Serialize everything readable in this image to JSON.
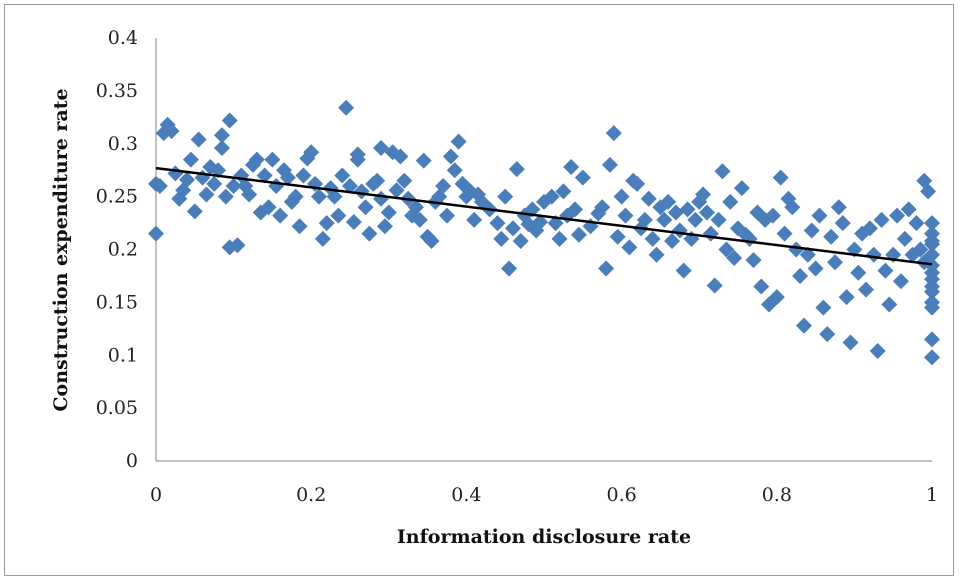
{
  "chart_data": {
    "type": "scatter",
    "title": "",
    "xlabel": "Information disclosure rate",
    "ylabel": "Construction expenditure rate",
    "xlim": [
      0,
      1
    ],
    "ylim": [
      0,
      0.4
    ],
    "x_ticks": [
      "0",
      "0.2",
      "0.4",
      "0.6",
      "0.8",
      "1"
    ],
    "y_ticks": [
      "0",
      "0.05",
      "0.1",
      "0.15",
      "0.2",
      "0.25",
      "0.3",
      "0.35",
      "0.4"
    ],
    "grid": false,
    "legend": "none",
    "marker": "diamond",
    "marker_color": "#4a7ebb",
    "trendline": {
      "color": "#000000",
      "start": [
        0,
        0.277
      ],
      "end": [
        1,
        0.186
      ]
    },
    "series": [
      {
        "points": [
          [
            0.0,
            0.262
          ],
          [
            0.0,
            0.215
          ],
          [
            0.005,
            0.26
          ],
          [
            0.01,
            0.31
          ],
          [
            0.015,
            0.318
          ],
          [
            0.02,
            0.312
          ],
          [
            0.025,
            0.272
          ],
          [
            0.03,
            0.248
          ],
          [
            0.035,
            0.256
          ],
          [
            0.04,
            0.266
          ],
          [
            0.045,
            0.285
          ],
          [
            0.05,
            0.236
          ],
          [
            0.055,
            0.304
          ],
          [
            0.06,
            0.268
          ],
          [
            0.065,
            0.252
          ],
          [
            0.07,
            0.278
          ],
          [
            0.075,
            0.262
          ],
          [
            0.08,
            0.275
          ],
          [
            0.085,
            0.296
          ],
          [
            0.085,
            0.308
          ],
          [
            0.09,
            0.25
          ],
          [
            0.095,
            0.322
          ],
          [
            0.095,
            0.202
          ],
          [
            0.1,
            0.26
          ],
          [
            0.105,
            0.204
          ],
          [
            0.11,
            0.27
          ],
          [
            0.115,
            0.26
          ],
          [
            0.12,
            0.252
          ],
          [
            0.125,
            0.28
          ],
          [
            0.13,
            0.285
          ],
          [
            0.135,
            0.235
          ],
          [
            0.14,
            0.27
          ],
          [
            0.145,
            0.24
          ],
          [
            0.15,
            0.285
          ],
          [
            0.155,
            0.26
          ],
          [
            0.16,
            0.232
          ],
          [
            0.165,
            0.275
          ],
          [
            0.17,
            0.268
          ],
          [
            0.175,
            0.245
          ],
          [
            0.18,
            0.25
          ],
          [
            0.185,
            0.222
          ],
          [
            0.19,
            0.27
          ],
          [
            0.195,
            0.286
          ],
          [
            0.2,
            0.292
          ],
          [
            0.205,
            0.262
          ],
          [
            0.21,
            0.25
          ],
          [
            0.215,
            0.21
          ],
          [
            0.22,
            0.225
          ],
          [
            0.225,
            0.258
          ],
          [
            0.23,
            0.25
          ],
          [
            0.235,
            0.232
          ],
          [
            0.24,
            0.27
          ],
          [
            0.245,
            0.334
          ],
          [
            0.25,
            0.26
          ],
          [
            0.255,
            0.226
          ],
          [
            0.26,
            0.29
          ],
          [
            0.26,
            0.285
          ],
          [
            0.265,
            0.255
          ],
          [
            0.27,
            0.24
          ],
          [
            0.275,
            0.215
          ],
          [
            0.28,
            0.262
          ],
          [
            0.285,
            0.265
          ],
          [
            0.29,
            0.248
          ],
          [
            0.29,
            0.296
          ],
          [
            0.295,
            0.222
          ],
          [
            0.3,
            0.235
          ],
          [
            0.305,
            0.292
          ],
          [
            0.31,
            0.256
          ],
          [
            0.315,
            0.288
          ],
          [
            0.32,
            0.265
          ],
          [
            0.325,
            0.248
          ],
          [
            0.33,
            0.232
          ],
          [
            0.335,
            0.24
          ],
          [
            0.34,
            0.228
          ],
          [
            0.345,
            0.284
          ],
          [
            0.35,
            0.212
          ],
          [
            0.355,
            0.208
          ],
          [
            0.36,
            0.245
          ],
          [
            0.365,
            0.25
          ],
          [
            0.37,
            0.26
          ],
          [
            0.375,
            0.232
          ],
          [
            0.38,
            0.288
          ],
          [
            0.385,
            0.275
          ],
          [
            0.39,
            0.302
          ],
          [
            0.395,
            0.262
          ],
          [
            0.4,
            0.25
          ],
          [
            0.405,
            0.255
          ],
          [
            0.41,
            0.228
          ],
          [
            0.415,
            0.252
          ],
          [
            0.42,
            0.245
          ],
          [
            0.43,
            0.238
          ],
          [
            0.44,
            0.225
          ],
          [
            0.445,
            0.21
          ],
          [
            0.45,
            0.25
          ],
          [
            0.455,
            0.182
          ],
          [
            0.46,
            0.22
          ],
          [
            0.465,
            0.276
          ],
          [
            0.47,
            0.208
          ],
          [
            0.475,
            0.232
          ],
          [
            0.48,
            0.224
          ],
          [
            0.485,
            0.238
          ],
          [
            0.49,
            0.218
          ],
          [
            0.495,
            0.226
          ],
          [
            0.5,
            0.245
          ],
          [
            0.51,
            0.25
          ],
          [
            0.515,
            0.225
          ],
          [
            0.52,
            0.21
          ],
          [
            0.525,
            0.255
          ],
          [
            0.53,
            0.232
          ],
          [
            0.535,
            0.278
          ],
          [
            0.54,
            0.238
          ],
          [
            0.545,
            0.214
          ],
          [
            0.55,
            0.268
          ],
          [
            0.56,
            0.222
          ],
          [
            0.57,
            0.234
          ],
          [
            0.575,
            0.24
          ],
          [
            0.58,
            0.182
          ],
          [
            0.585,
            0.28
          ],
          [
            0.59,
            0.31
          ],
          [
            0.595,
            0.212
          ],
          [
            0.6,
            0.25
          ],
          [
            0.605,
            0.232
          ],
          [
            0.61,
            0.202
          ],
          [
            0.615,
            0.265
          ],
          [
            0.62,
            0.262
          ],
          [
            0.625,
            0.22
          ],
          [
            0.63,
            0.228
          ],
          [
            0.635,
            0.248
          ],
          [
            0.64,
            0.21
          ],
          [
            0.645,
            0.195
          ],
          [
            0.65,
            0.24
          ],
          [
            0.655,
            0.228
          ],
          [
            0.66,
            0.245
          ],
          [
            0.665,
            0.208
          ],
          [
            0.67,
            0.235
          ],
          [
            0.675,
            0.218
          ],
          [
            0.68,
            0.18
          ],
          [
            0.685,
            0.238
          ],
          [
            0.69,
            0.21
          ],
          [
            0.695,
            0.228
          ],
          [
            0.7,
            0.245
          ],
          [
            0.705,
            0.252
          ],
          [
            0.71,
            0.235
          ],
          [
            0.715,
            0.215
          ],
          [
            0.72,
            0.166
          ],
          [
            0.725,
            0.228
          ],
          [
            0.73,
            0.274
          ],
          [
            0.735,
            0.2
          ],
          [
            0.74,
            0.245
          ],
          [
            0.745,
            0.192
          ],
          [
            0.75,
            0.22
          ],
          [
            0.755,
            0.258
          ],
          [
            0.76,
            0.214
          ],
          [
            0.765,
            0.21
          ],
          [
            0.77,
            0.19
          ],
          [
            0.775,
            0.235
          ],
          [
            0.78,
            0.165
          ],
          [
            0.785,
            0.228
          ],
          [
            0.79,
            0.148
          ],
          [
            0.795,
            0.232
          ],
          [
            0.8,
            0.155
          ],
          [
            0.805,
            0.268
          ],
          [
            0.81,
            0.215
          ],
          [
            0.815,
            0.248
          ],
          [
            0.82,
            0.24
          ],
          [
            0.825,
            0.2
          ],
          [
            0.83,
            0.175
          ],
          [
            0.835,
            0.128
          ],
          [
            0.84,
            0.195
          ],
          [
            0.845,
            0.218
          ],
          [
            0.85,
            0.182
          ],
          [
            0.855,
            0.232
          ],
          [
            0.86,
            0.145
          ],
          [
            0.865,
            0.12
          ],
          [
            0.87,
            0.212
          ],
          [
            0.875,
            0.188
          ],
          [
            0.88,
            0.24
          ],
          [
            0.885,
            0.225
          ],
          [
            0.89,
            0.155
          ],
          [
            0.895,
            0.112
          ],
          [
            0.9,
            0.2
          ],
          [
            0.905,
            0.178
          ],
          [
            0.91,
            0.215
          ],
          [
            0.915,
            0.162
          ],
          [
            0.92,
            0.22
          ],
          [
            0.925,
            0.195
          ],
          [
            0.93,
            0.104
          ],
          [
            0.935,
            0.228
          ],
          [
            0.94,
            0.18
          ],
          [
            0.945,
            0.148
          ],
          [
            0.95,
            0.195
          ],
          [
            0.955,
            0.232
          ],
          [
            0.96,
            0.17
          ],
          [
            0.965,
            0.21
          ],
          [
            0.97,
            0.238
          ],
          [
            0.975,
            0.195
          ],
          [
            0.98,
            0.225
          ],
          [
            0.985,
            0.2
          ],
          [
            0.99,
            0.265
          ],
          [
            0.99,
            0.188
          ],
          [
            0.995,
            0.255
          ],
          [
            1.0,
            0.098
          ],
          [
            1.0,
            0.115
          ],
          [
            1.0,
            0.145
          ],
          [
            1.0,
            0.16
          ],
          [
            1.0,
            0.172
          ],
          [
            1.0,
            0.185
          ],
          [
            1.0,
            0.195
          ],
          [
            1.0,
            0.205
          ],
          [
            1.0,
            0.215
          ],
          [
            1.0,
            0.225
          ],
          [
            1.0,
            0.165
          ],
          [
            1.0,
            0.15
          ],
          [
            1.0,
            0.178
          ],
          [
            1.0,
            0.208
          ]
        ]
      }
    ]
  }
}
